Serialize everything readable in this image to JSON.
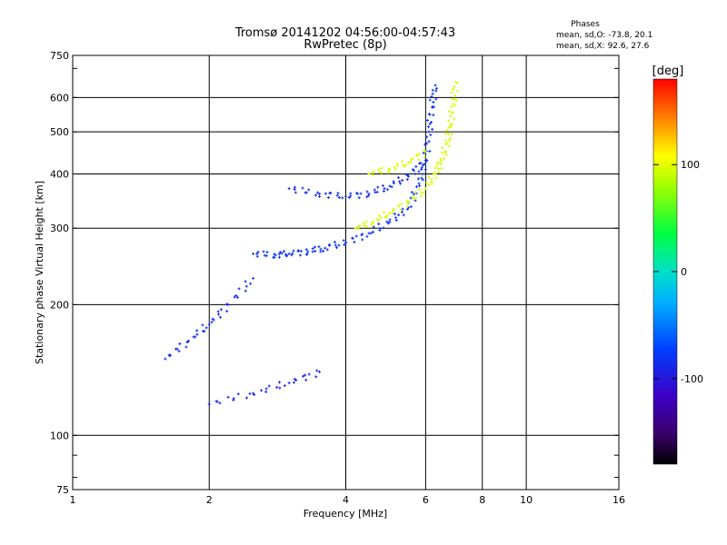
{
  "chart_data": {
    "type": "scatter",
    "title": "Tromsø 20141202 04:56:00-04:57:43",
    "subtitle": "RwPretec (8p)",
    "xlabel": "Frequency [MHz]",
    "ylabel": "Stationary phase Virtual Height [km]",
    "x_scale": "log",
    "y_scale": "log",
    "xlim": [
      1,
      16
    ],
    "ylim": [
      75,
      750
    ],
    "x_ticks": [
      1,
      2,
      4,
      6,
      8,
      10,
      16
    ],
    "y_ticks": [
      75,
      100,
      200,
      300,
      400,
      500,
      600,
      750
    ],
    "grid": true,
    "phase_stats": {
      "title": "Phases",
      "line_o": "mean, sd,O: -73.8, 20.1",
      "line_x": "mean, sd,X:  92.6, 27.6"
    },
    "colorbar": {
      "label": "[deg]",
      "range": [
        -180,
        180
      ],
      "ticks": [
        "100",
        "0",
        "-100"
      ],
      "tick_values": [
        100,
        0,
        -100
      ],
      "colormap": "rainbow (black → purple → blue → cyan → green → yellow → red)"
    },
    "series": [
      {
        "trace": "o-F2",
        "phase_deg": -80,
        "x": [
          2.5,
          2.8,
          3.0,
          3.3,
          3.6,
          4.0,
          4.5,
          5.0,
          5.5,
          5.8,
          6.0,
          6.1,
          6.2,
          6.3
        ],
        "y": [
          262,
          260,
          262,
          265,
          270,
          278,
          292,
          310,
          335,
          380,
          430,
          500,
          570,
          640
        ]
      },
      {
        "trace": "x-F2",
        "phase_deg": 95,
        "x": [
          4.2,
          4.6,
          5.0,
          5.5,
          6.0,
          6.3,
          6.5,
          6.7,
          6.8,
          6.9,
          7.0
        ],
        "y": [
          300,
          310,
          325,
          345,
          370,
          400,
          430,
          470,
          520,
          580,
          650
        ]
      },
      {
        "trace": "o-F2-multi",
        "phase_deg": -85,
        "x": [
          3.0,
          3.5,
          4.0,
          4.5,
          5.0,
          5.5,
          6.0
        ],
        "y": [
          370,
          360,
          355,
          360,
          375,
          395,
          430
        ]
      },
      {
        "trace": "x-F2-multi",
        "phase_deg": 95,
        "x": [
          4.5,
          5.0,
          5.5,
          6.0
        ],
        "y": [
          400,
          410,
          425,
          450
        ]
      },
      {
        "trace": "E-sporadic",
        "phase_deg": -90,
        "x": [
          2.0,
          2.5,
          3.0,
          3.5
        ],
        "y": [
          118,
          125,
          132,
          140
        ]
      },
      {
        "trace": "F1-region",
        "phase_deg": -85,
        "x": [
          1.6,
          1.8,
          2.0,
          2.2,
          2.5
        ],
        "y": [
          150,
          165,
          180,
          200,
          230
        ]
      }
    ]
  }
}
